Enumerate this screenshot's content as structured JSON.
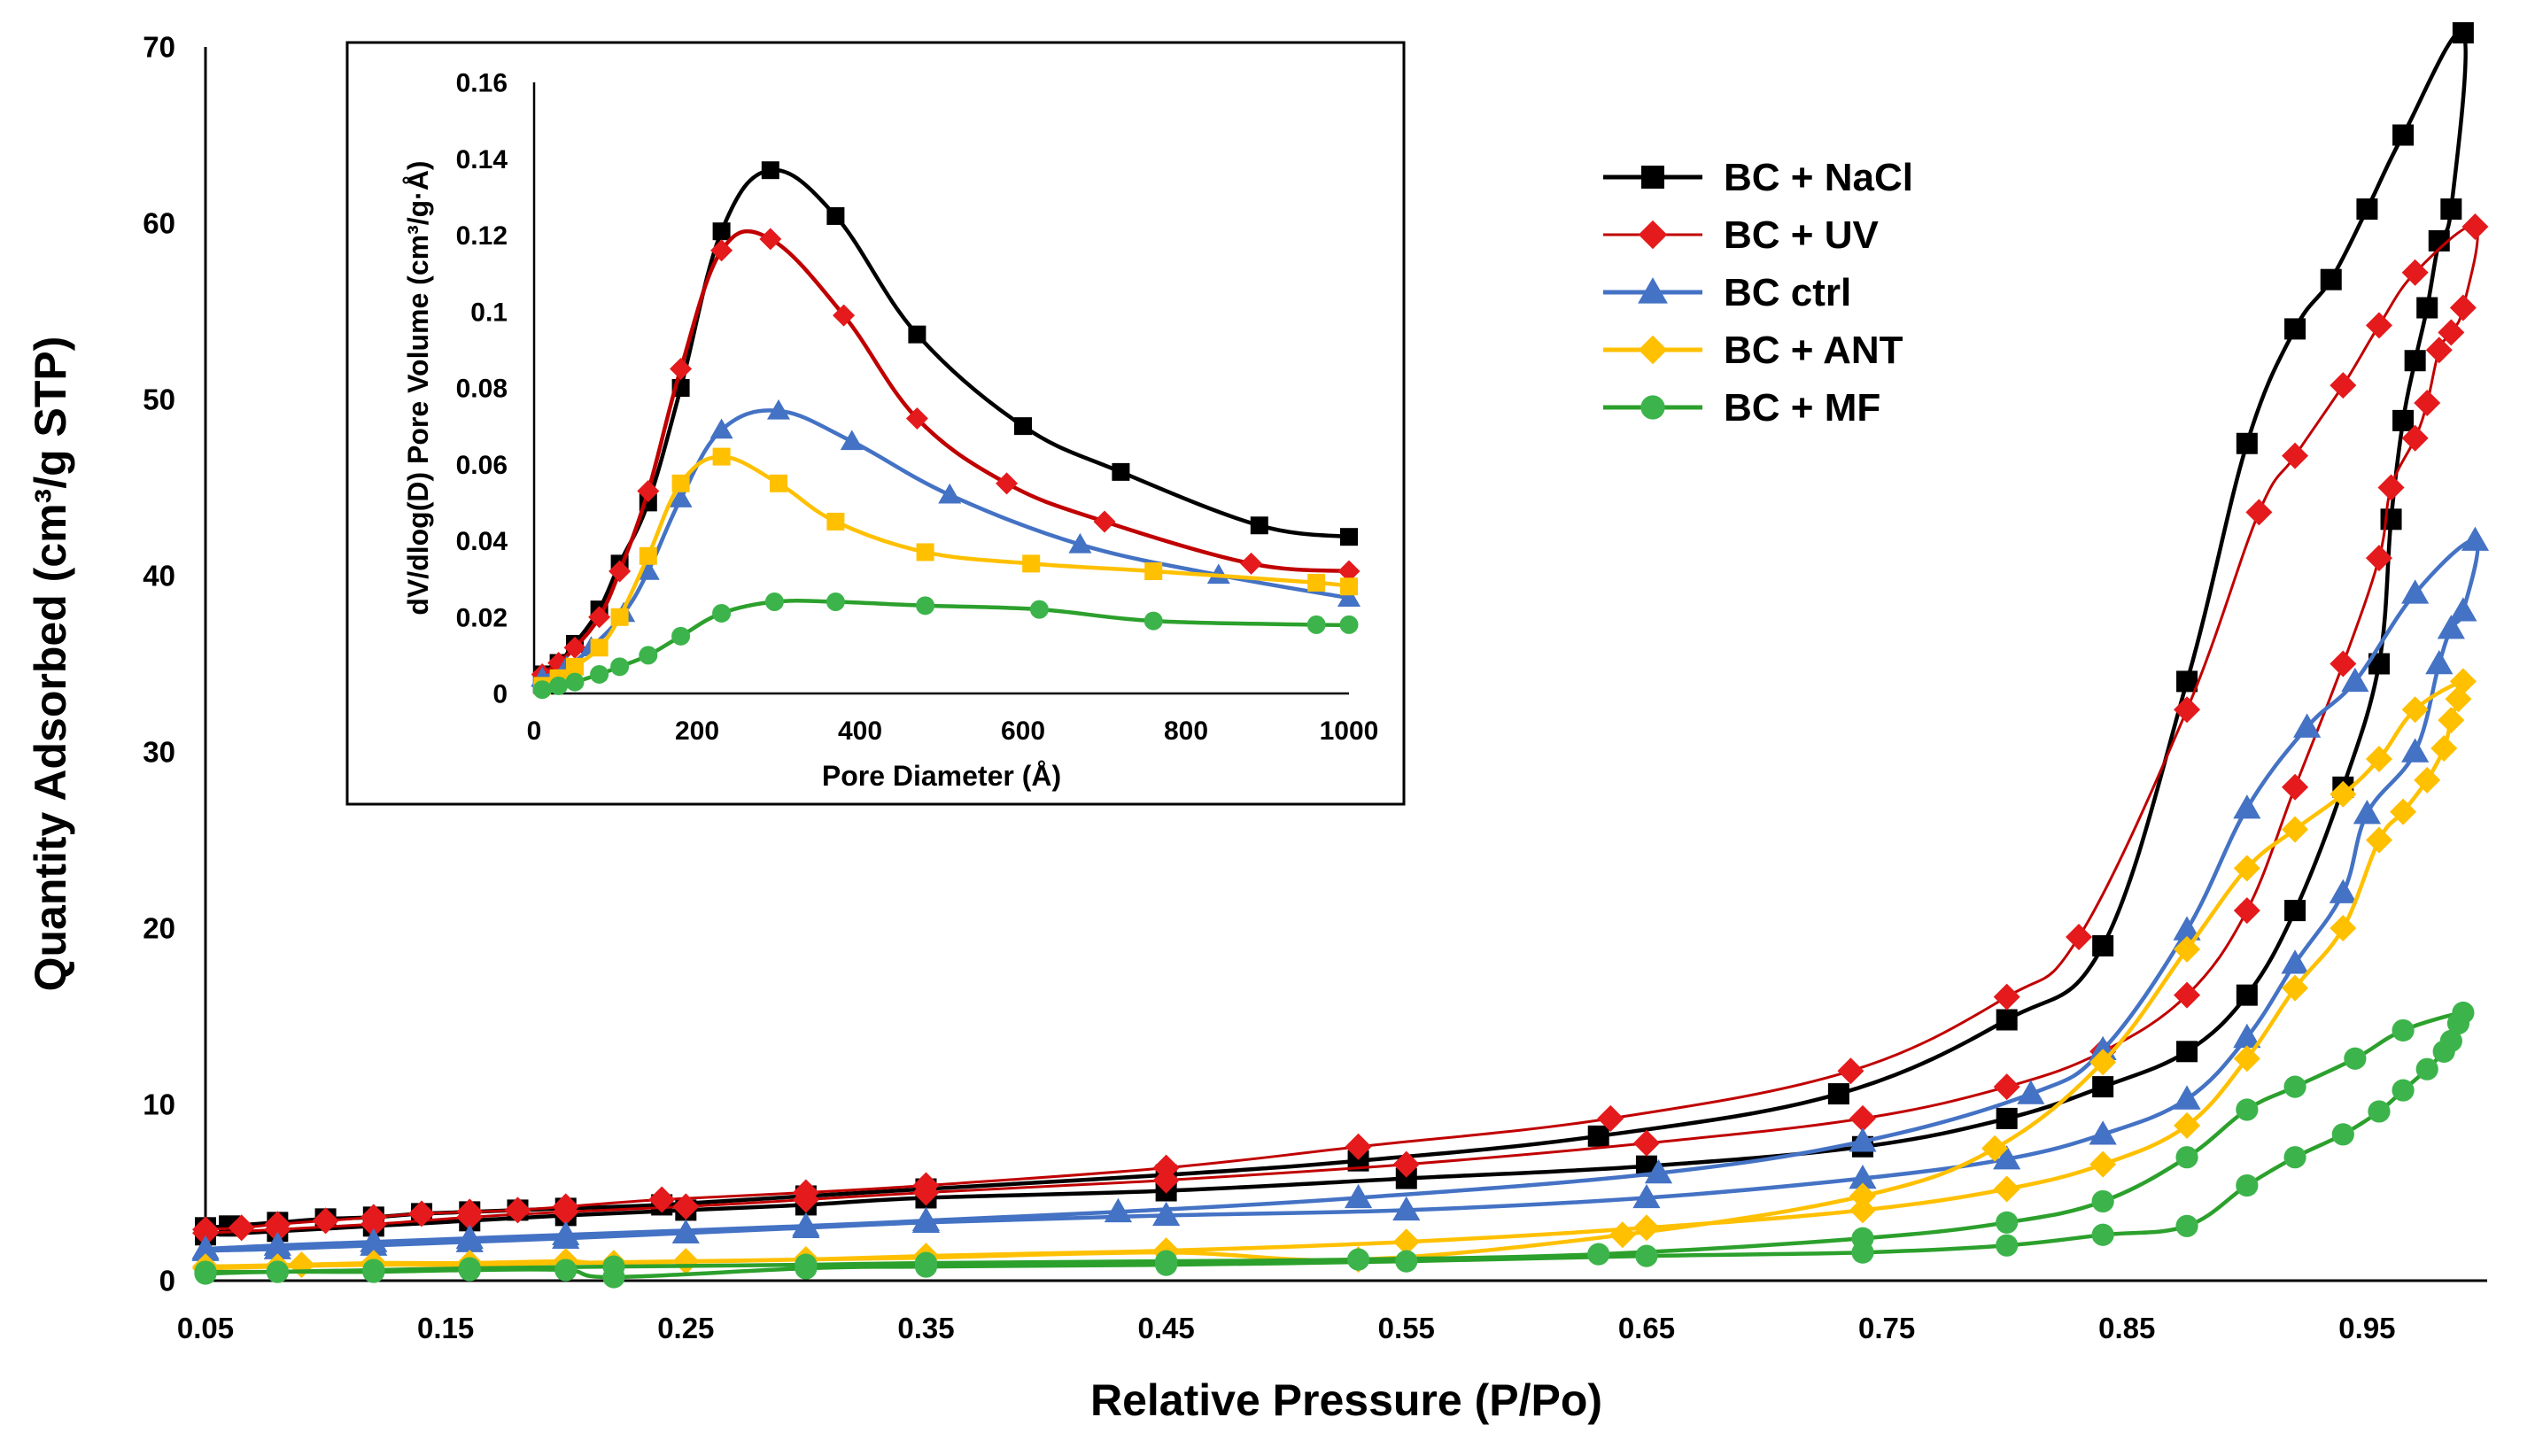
{
  "chart_data": [
    {
      "id": "main",
      "type": "line",
      "xlabel": "Relative Pressure (P/Po)",
      "ylabel": "Quantity Adsorbed (cm³/g STP)",
      "xlim": [
        0.05,
        1.0
      ],
      "ylim": [
        0,
        70
      ],
      "xticks": [
        "0.05",
        "0.15",
        "0.25",
        "0.35",
        "0.45",
        "0.55",
        "0.65",
        "0.75",
        "0.85",
        "0.95"
      ],
      "xtick_values": [
        0.05,
        0.15,
        0.25,
        0.35,
        0.45,
        0.55,
        0.65,
        0.75,
        0.85,
        0.95
      ],
      "yticks": [
        "0",
        "10",
        "20",
        "30",
        "40",
        "50",
        "60",
        "70"
      ],
      "ytick_values": [
        0,
        10,
        20,
        30,
        40,
        50,
        60,
        70
      ],
      "grid": false,
      "legend_position": "top-right",
      "series": [
        {
          "name": "BC + NaCl",
          "color": "#000000",
          "marker": "square",
          "width": 3,
          "x": [
            0.05,
            0.06,
            0.08,
            0.1,
            0.12,
            0.14,
            0.16,
            0.18,
            0.2,
            0.24,
            0.3,
            0.35,
            0.45,
            0.53,
            0.63,
            0.73,
            0.8,
            0.84,
            0.875,
            0.9,
            0.92,
            0.935,
            0.95,
            0.965,
            0.99,
            0.985,
            0.98,
            0.975,
            0.97,
            0.965,
            0.96,
            0.955,
            0.94,
            0.92,
            0.9,
            0.875,
            0.84,
            0.8,
            0.74,
            0.65,
            0.55,
            0.45,
            0.35,
            0.3,
            0.25,
            0.2,
            0.16,
            0.12,
            0.08,
            0.05
          ],
          "y": [
            3.0,
            3.1,
            3.3,
            3.5,
            3.6,
            3.8,
            3.9,
            4.0,
            4.1,
            4.3,
            4.8,
            5.2,
            6.0,
            6.8,
            8.2,
            10.6,
            14.8,
            19.0,
            34.0,
            47.5,
            54.0,
            56.8,
            60.8,
            65.0,
            70.8,
            60.8,
            59.0,
            55.2,
            52.2,
            48.8,
            43.2,
            35.0,
            28.0,
            21.0,
            16.2,
            13.0,
            11.0,
            9.2,
            7.6,
            6.5,
            5.8,
            5.1,
            4.7,
            4.3,
            4.0,
            3.7,
            3.4,
            3.1,
            2.8,
            2.6
          ]
        },
        {
          "name": "BC + UV",
          "color": "#e41a1c",
          "line_color": "#c00000",
          "marker": "diamond",
          "width": 2,
          "x": [
            0.05,
            0.065,
            0.08,
            0.1,
            0.12,
            0.14,
            0.16,
            0.18,
            0.2,
            0.24,
            0.3,
            0.35,
            0.45,
            0.53,
            0.635,
            0.735,
            0.8,
            0.83,
            0.875,
            0.905,
            0.92,
            0.94,
            0.955,
            0.97,
            0.995,
            0.99,
            0.985,
            0.98,
            0.975,
            0.97,
            0.96,
            0.955,
            0.94,
            0.92,
            0.9,
            0.875,
            0.84,
            0.8,
            0.74,
            0.65,
            0.55,
            0.45,
            0.35,
            0.3,
            0.25,
            0.2,
            0.16,
            0.12,
            0.08,
            0.05
          ],
          "y": [
            2.9,
            3.0,
            3.2,
            3.4,
            3.6,
            3.8,
            3.9,
            4.0,
            4.2,
            4.6,
            5.0,
            5.4,
            6.4,
            7.6,
            9.2,
            11.9,
            16.1,
            19.5,
            32.4,
            43.6,
            46.8,
            50.8,
            54.2,
            57.2,
            59.8,
            55.2,
            53.8,
            52.8,
            49.8,
            47.8,
            45.0,
            41.0,
            35.0,
            28.0,
            21.0,
            16.2,
            13.0,
            11.0,
            9.2,
            7.8,
            6.6,
            5.7,
            5.0,
            4.6,
            4.2,
            3.9,
            3.6,
            3.2,
            2.9,
            2.7
          ]
        },
        {
          "name": "BC ctrl",
          "color": "#4472c4",
          "marker": "triangle",
          "width": 3,
          "x": [
            0.05,
            0.08,
            0.12,
            0.16,
            0.2,
            0.3,
            0.35,
            0.43,
            0.53,
            0.655,
            0.74,
            0.81,
            0.84,
            0.875,
            0.9,
            0.925,
            0.945,
            0.97,
            0.995,
            0.99,
            0.985,
            0.98,
            0.97,
            0.95,
            0.94,
            0.92,
            0.9,
            0.875,
            0.84,
            0.8,
            0.74,
            0.65,
            0.55,
            0.45,
            0.35,
            0.3,
            0.25,
            0.2,
            0.16,
            0.12,
            0.08,
            0.05
          ],
          "y": [
            1.8,
            2.0,
            2.2,
            2.4,
            2.6,
            3.1,
            3.4,
            3.9,
            4.7,
            6.1,
            7.9,
            10.6,
            13.1,
            19.9,
            26.8,
            31.4,
            34.0,
            39.0,
            42.0,
            38.0,
            37.0,
            35.0,
            30.0,
            26.5,
            22.0,
            18.0,
            13.8,
            10.3,
            8.3,
            6.9,
            5.8,
            4.7,
            4.0,
            3.7,
            3.3,
            3.0,
            2.7,
            2.4,
            2.2,
            2.0,
            1.8,
            1.7
          ]
        },
        {
          "name": "BC + ANT",
          "color": "#ffc000",
          "marker": "diamond",
          "width": 3,
          "x": [
            0.05,
            0.09,
            0.12,
            0.16,
            0.2,
            0.22,
            0.3,
            0.35,
            0.45,
            0.53,
            0.64,
            0.74,
            0.795,
            0.84,
            0.875,
            0.9,
            0.92,
            0.94,
            0.955,
            0.97,
            0.99,
            0.988,
            0.985,
            0.982,
            0.975,
            0.965,
            0.955,
            0.94,
            0.92,
            0.9,
            0.875,
            0.84,
            0.8,
            0.74,
            0.65,
            0.55,
            0.45,
            0.35,
            0.3,
            0.25,
            0.2,
            0.16,
            0.12,
            0.08,
            0.05
          ],
          "y": [
            0.8,
            0.9,
            1.0,
            1.0,
            1.1,
            1.0,
            1.2,
            1.3,
            1.6,
            1.2,
            2.6,
            4.8,
            7.5,
            12.4,
            18.8,
            23.4,
            25.6,
            27.6,
            29.6,
            32.4,
            34.0,
            33.0,
            31.8,
            30.2,
            28.4,
            26.6,
            25.0,
            20.0,
            16.6,
            12.6,
            8.8,
            6.6,
            5.2,
            4.0,
            3.0,
            2.2,
            1.7,
            1.4,
            1.2,
            1.1,
            1.0,
            0.9,
            0.9,
            0.8,
            0.7
          ]
        },
        {
          "name": "BC + MF",
          "color": "#3cb44b",
          "line_color": "#2ca02c",
          "marker": "circle",
          "width": 3,
          "x": [
            0.05,
            0.08,
            0.12,
            0.16,
            0.22,
            0.3,
            0.35,
            0.45,
            0.53,
            0.63,
            0.74,
            0.8,
            0.84,
            0.875,
            0.9,
            0.92,
            0.945,
            0.965,
            0.99,
            0.988,
            0.985,
            0.982,
            0.975,
            0.965,
            0.955,
            0.94,
            0.92,
            0.9,
            0.875,
            0.84,
            0.8,
            0.74,
            0.65,
            0.55,
            0.45,
            0.35,
            0.3,
            0.22,
            0.2,
            0.16,
            0.12,
            0.08,
            0.05
          ],
          "y": [
            0.5,
            0.5,
            0.6,
            0.7,
            0.8,
            0.9,
            1.0,
            1.1,
            1.2,
            1.5,
            2.4,
            3.3,
            4.5,
            7.0,
            9.7,
            11.0,
            12.6,
            14.2,
            15.2,
            14.6,
            13.6,
            13.0,
            12.0,
            10.8,
            9.6,
            8.3,
            7.0,
            5.4,
            3.1,
            2.6,
            2.0,
            1.6,
            1.4,
            1.1,
            0.9,
            0.8,
            0.7,
            0.2,
            0.6,
            0.6,
            0.5,
            0.5,
            0.4
          ]
        }
      ]
    },
    {
      "id": "inset",
      "type": "line",
      "xlabel": "Pore Diameter (Å)",
      "ylabel": "dV/dlog(D) Pore Volume (cm³/g·Å)",
      "xlim": [
        0,
        1000
      ],
      "ylim": [
        0,
        0.16
      ],
      "xticks": [
        "0",
        "200",
        "400",
        "600",
        "800",
        "1000"
      ],
      "xtick_values": [
        0,
        200,
        400,
        600,
        800,
        1000
      ],
      "yticks": [
        "0",
        "0.02",
        "0.04",
        "0.06",
        "0.08",
        "0.1",
        "0.12",
        "0.14",
        "0.16"
      ],
      "ytick_values": [
        0,
        0.02,
        0.04,
        0.06,
        0.08,
        0.1,
        0.12,
        0.14,
        0.16
      ],
      "grid": false,
      "series": [
        {
          "name": "BC + NaCl",
          "color": "#000000",
          "marker": "square",
          "width": 3,
          "x": [
            10,
            30,
            50,
            80,
            105,
            140,
            180,
            230,
            290,
            370,
            470,
            600,
            720,
            890,
            1000
          ],
          "y": [
            0.005,
            0.008,
            0.013,
            0.022,
            0.034,
            0.05,
            0.08,
            0.121,
            0.137,
            0.125,
            0.094,
            0.07,
            0.058,
            0.044,
            0.041
          ]
        },
        {
          "name": "BC + UV",
          "color": "#e41a1c",
          "line_color": "#c00000",
          "marker": "diamond",
          "width": 3,
          "x": [
            10,
            30,
            50,
            80,
            105,
            140,
            180,
            230,
            290,
            380,
            470,
            580,
            700,
            880,
            1000
          ],
          "y": [
            0.005,
            0.008,
            0.012,
            0.02,
            0.032,
            0.053,
            0.085,
            0.116,
            0.119,
            0.099,
            0.072,
            0.055,
            0.045,
            0.034,
            0.032
          ]
        },
        {
          "name": "BC ctrl",
          "color": "#4472c4",
          "marker": "triangle",
          "width": 3,
          "x": [
            10,
            40,
            70,
            110,
            140,
            180,
            230,
            300,
            390,
            510,
            670,
            840,
            1000
          ],
          "y": [
            0.004,
            0.007,
            0.012,
            0.021,
            0.032,
            0.051,
            0.069,
            0.074,
            0.066,
            0.052,
            0.039,
            0.031,
            0.025
          ]
        },
        {
          "name": "BC + ANT",
          "color": "#ffc000",
          "marker": "square",
          "width": 3,
          "x": [
            10,
            30,
            50,
            80,
            105,
            140,
            180,
            230,
            300,
            370,
            480,
            610,
            760,
            960,
            1000
          ],
          "y": [
            0.002,
            0.004,
            0.007,
            0.012,
            0.02,
            0.036,
            0.055,
            0.062,
            0.055,
            0.045,
            0.037,
            0.034,
            0.032,
            0.029,
            0.028
          ]
        },
        {
          "name": "BC + MF",
          "color": "#3cb44b",
          "line_color": "#2ca02c",
          "marker": "circle",
          "width": 3,
          "x": [
            10,
            30,
            50,
            80,
            105,
            140,
            180,
            230,
            295,
            370,
            480,
            620,
            760,
            960,
            1000
          ],
          "y": [
            0.001,
            0.002,
            0.003,
            0.005,
            0.007,
            0.01,
            0.015,
            0.021,
            0.024,
            0.024,
            0.023,
            0.022,
            0.019,
            0.018,
            0.018
          ]
        }
      ]
    }
  ]
}
